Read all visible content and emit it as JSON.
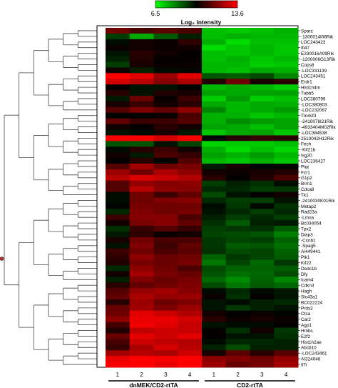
{
  "chart_data": {
    "type": "heatmap",
    "title": "",
    "colorbar": {
      "title": "Log₂ intensity",
      "min_label": "6.5",
      "max_label": "13.6",
      "min": 6.5,
      "max": 13.6,
      "colors": [
        "#00ff00",
        "#000000",
        "#ff0000"
      ]
    },
    "columns": [
      "1",
      "2",
      "3",
      "4",
      "1",
      "2",
      "3",
      "4"
    ],
    "groups": [
      {
        "name": "dnMEK/CD2-rtTA",
        "start": 0,
        "end": 3
      },
      {
        "name": "CD2-rtTA",
        "start": 4,
        "end": 7
      }
    ],
    "rows": [
      "Sparc",
      "-1300014I06Rik",
      "LOC243423",
      "Ifi47",
      "E330016A09Rik",
      "-1200006G13Rik",
      "Cops8",
      "-LOC331139",
      "LOC243451",
      "Erdr1",
      "Hist1h4m",
      "Tubb5",
      "LOC380799",
      "-LOC380803",
      "-LOC232067",
      "Tm4sf3",
      "-2410078I21Rik",
      "-4933404M02Rik",
      "-LOC384538",
      "2510042H12Rik",
      "Fech",
      "-Kif21b",
      "Isg20",
      "LOC236427",
      "Piqt",
      "Fzr1",
      "G1p2",
      "Brrn1",
      "Cdca8",
      "Tk1",
      "-2410030K01Rik",
      "Metap2",
      "Rad23a",
      "-Lmna",
      "Bc034054",
      "Tpx2",
      "Diap3",
      "-Ccnb1",
      "-Spag5",
      "AI449441",
      "Plk1",
      "Kif22",
      "Dedc1b",
      "Dfy",
      "Icam4",
      "Cdkn3",
      "Hagh",
      "Slc43a1",
      "BC022224",
      "Prdx2",
      "Ctsa",
      "Car2",
      "Agp1",
      "Hmbs",
      "E2f2",
      "Hist1h2ae",
      "Abcb10",
      "-LOC243461",
      "AI324046",
      "Il7r"
    ],
    "values": [
      [
        11.6,
        11.1,
        11.3,
        11.1,
        7.4,
        7.3,
        7.4,
        7.6
      ],
      [
        9.2,
        7.7,
        8.8,
        9.6,
        7.4,
        7.6,
        7.5,
        7.5
      ],
      [
        9.9,
        10.3,
        10.2,
        10.7,
        7.6,
        7.0,
        7.4,
        7.4
      ],
      [
        10.2,
        10.3,
        10.2,
        10.3,
        7.0,
        7.3,
        7.5,
        7.3
      ],
      [
        9.8,
        10.6,
        10.3,
        10.1,
        7.4,
        7.3,
        7.5,
        7.3
      ],
      [
        9.6,
        10.5,
        10.1,
        10.1,
        7.4,
        7.6,
        7.3,
        7.5
      ],
      [
        9.2,
        10.4,
        10.2,
        10.2,
        7.5,
        7.5,
        7.2,
        7.3
      ],
      [
        10.3,
        9.6,
        9.9,
        10.0,
        7.5,
        7.4,
        7.7,
        7.6
      ],
      [
        13.6,
        13.2,
        12.2,
        13.2,
        8.9,
        8.8,
        9.0,
        8.2
      ],
      [
        13.0,
        12.6,
        11.9,
        12.4,
        10.5,
        11.6,
        10.4,
        10.6
      ],
      [
        10.1,
        9.8,
        9.8,
        10.0,
        7.5,
        7.7,
        7.5,
        7.2
      ],
      [
        10.6,
        9.8,
        10.5,
        10.4,
        7.8,
        7.7,
        7.8,
        7.8
      ],
      [
        9.7,
        11.5,
        10.2,
        10.9,
        7.2,
        7.9,
        7.2,
        7.4
      ],
      [
        10.4,
        10.8,
        10.3,
        10.6,
        7.7,
        7.5,
        7.7,
        7.6
      ],
      [
        11.2,
        11.8,
        11.4,
        12.0,
        8.2,
        7.5,
        7.7,
        7.9
      ],
      [
        10.0,
        10.0,
        10.2,
        11.1,
        7.6,
        7.6,
        7.3,
        7.5
      ],
      [
        11.4,
        10.9,
        10.9,
        11.2,
        7.6,
        8.1,
        7.9,
        7.8
      ],
      [
        10.3,
        10.1,
        10.6,
        10.3,
        7.8,
        7.7,
        7.4,
        7.8
      ],
      [
        9.8,
        9.9,
        10.4,
        9.7,
        7.3,
        7.7,
        7.8,
        7.3
      ],
      [
        13.5,
        13.5,
        13.0,
        13.5,
        10.0,
        10.6,
        10.8,
        10.6
      ],
      [
        8.9,
        8.9,
        9.8,
        9.1,
        7.1,
        7.2,
        7.2,
        7.4
      ],
      [
        9.9,
        10.6,
        10.9,
        10.3,
        7.6,
        7.0,
        7.4,
        7.1
      ],
      [
        10.3,
        9.7,
        11.1,
        10.8,
        7.8,
        7.6,
        7.9,
        7.5
      ],
      [
        10.1,
        10.6,
        10.0,
        11.2,
        7.5,
        7.3,
        7.6,
        7.3
      ],
      [
        11.2,
        12.3,
        11.6,
        11.7,
        9.7,
        10.4,
        10.0,
        10.0
      ],
      [
        12.2,
        11.6,
        12.4,
        12.0,
        10.3,
        10.2,
        10.4,
        10.5
      ],
      [
        12.6,
        13.1,
        12.8,
        12.5,
        10.6,
        10.1,
        10.5,
        11.1
      ],
      [
        11.2,
        12.1,
        11.9,
        12.0,
        9.2,
        9.6,
        9.4,
        9.9
      ],
      [
        11.2,
        12.6,
        12.0,
        11.9,
        9.5,
        9.5,
        9.2,
        9.3
      ],
      [
        9.9,
        11.6,
        10.9,
        11.4,
        9.0,
        9.8,
        10.1,
        10.3
      ],
      [
        9.9,
        11.6,
        11.8,
        11.9,
        9.5,
        9.2,
        9.2,
        9.8
      ],
      [
        10.0,
        11.7,
        11.6,
        11.6,
        9.9,
        9.3,
        9.9,
        9.4
      ],
      [
        9.5,
        11.8,
        11.6,
        11.7,
        9.8,
        9.5,
        9.2,
        9.5
      ],
      [
        10.9,
        11.9,
        11.9,
        11.1,
        9.6,
        9.2,
        9.5,
        9.2
      ],
      [
        10.3,
        11.7,
        11.9,
        11.4,
        9.4,
        8.8,
        9.6,
        9.7
      ],
      [
        9.4,
        10.8,
        11.2,
        10.8,
        9.2,
        9.3,
        9.4,
        8.8
      ],
      [
        9.7,
        10.7,
        10.2,
        10.3,
        9.1,
        9.0,
        8.9,
        8.3
      ],
      [
        10.4,
        11.6,
        11.1,
        11.1,
        9.3,
        9.1,
        9.2,
        8.7
      ],
      [
        9.8,
        11.8,
        10.9,
        11.4,
        9.3,
        8.8,
        8.9,
        8.5
      ],
      [
        10.9,
        11.6,
        11.1,
        11.3,
        9.4,
        9.0,
        9.1,
        8.7
      ],
      [
        10.7,
        12.0,
        11.5,
        11.6,
        8.7,
        9.3,
        9.1,
        8.8
      ],
      [
        10.5,
        11.7,
        11.5,
        11.7,
        8.4,
        9.1,
        8.6,
        9.3
      ],
      [
        9.5,
        12.0,
        11.6,
        11.1,
        9.0,
        8.7,
        8.7,
        8.8
      ],
      [
        10.3,
        12.3,
        11.7,
        11.5,
        8.9,
        8.5,
        8.6,
        9.0
      ],
      [
        9.6,
        11.8,
        11.5,
        11.7,
        8.6,
        8.1,
        8.7,
        8.2
      ],
      [
        10.6,
        11.4,
        11.6,
        11.8,
        9.0,
        8.4,
        8.8,
        8.6
      ],
      [
        11.2,
        12.1,
        12.3,
        11.9,
        9.9,
        9.5,
        9.9,
        9.7
      ],
      [
        11.4,
        12.4,
        12.1,
        12.2,
        10.2,
        9.4,
        10.1,
        9.8
      ],
      [
        10.6,
        12.2,
        11.6,
        11.8,
        9.8,
        9.9,
        9.6,
        9.5
      ],
      [
        11.5,
        12.3,
        11.8,
        12.2,
        9.8,
        9.3,
        9.6,
        9.8
      ],
      [
        11.6,
        13.2,
        12.9,
        12.5,
        10.3,
        10.1,
        10.2,
        10.0
      ],
      [
        12.0,
        13.3,
        13.3,
        13.0,
        10.6,
        10.2,
        10.4,
        10.2
      ],
      [
        11.0,
        13.4,
        13.2,
        12.8,
        9.8,
        9.9,
        9.9,
        10.1
      ],
      [
        10.5,
        12.7,
        12.9,
        12.8,
        10.1,
        9.4,
        10.3,
        9.3
      ],
      [
        11.5,
        13.2,
        12.9,
        13.2,
        10.1,
        9.8,
        9.8,
        9.4
      ],
      [
        11.0,
        12.9,
        12.7,
        12.5,
        9.9,
        9.5,
        9.5,
        9.6
      ],
      [
        10.8,
        12.4,
        13.0,
        12.6,
        9.6,
        9.0,
        9.6,
        9.6
      ],
      [
        12.3,
        12.6,
        12.4,
        12.9,
        10.4,
        11.3,
        10.6,
        11.3
      ],
      [
        13.3,
        13.6,
        13.5,
        13.6,
        12.0,
        11.8,
        11.6,
        12.1
      ],
      [
        13.5,
        13.6,
        13.3,
        13.6,
        12.2,
        11.5,
        11.7,
        12.3
      ]
    ]
  }
}
